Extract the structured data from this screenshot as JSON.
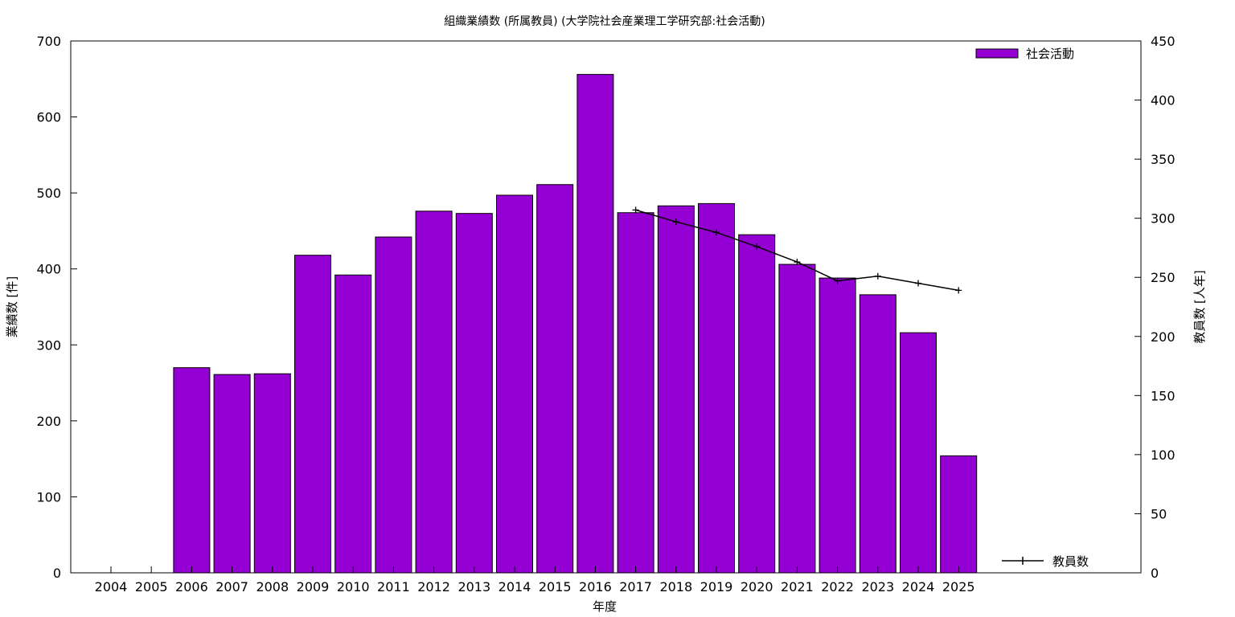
{
  "chart_data": {
    "type": "bar",
    "title": "組織業績数 (所属教員) (大学院社会産業理工学研究部:社会活動)",
    "xlabel": "年度",
    "ylabel": "業績数 [件]",
    "y2label": "教員数 [人年]",
    "categories": [
      "2004",
      "2005",
      "2006",
      "2007",
      "2008",
      "2009",
      "2010",
      "2011",
      "2012",
      "2013",
      "2014",
      "2015",
      "2016",
      "2017",
      "2018",
      "2019",
      "2020",
      "2021",
      "2022",
      "2023",
      "2024",
      "2025"
    ],
    "ylim": [
      0,
      700
    ],
    "y2lim": [
      0,
      450
    ],
    "yticks": [
      0,
      100,
      200,
      300,
      400,
      500,
      600,
      700
    ],
    "y2ticks": [
      0,
      50,
      100,
      150,
      200,
      250,
      300,
      350,
      400,
      450
    ],
    "grid": false,
    "legend_position": "top-right",
    "series": [
      {
        "name": "社会活動",
        "type": "bar",
        "axis": "left",
        "color": "#9400d3",
        "values": [
          null,
          null,
          270,
          261,
          262,
          418,
          392,
          442,
          476,
          473,
          497,
          511,
          656,
          474,
          483,
          486,
          445,
          406,
          388,
          366,
          316,
          154
        ]
      },
      {
        "name": "教員数",
        "type": "line",
        "axis": "right",
        "color": "#000000",
        "values": [
          null,
          null,
          null,
          null,
          null,
          null,
          null,
          null,
          null,
          null,
          null,
          null,
          null,
          307,
          297,
          288,
          276,
          263,
          247,
          251,
          245,
          239
        ]
      }
    ]
  }
}
